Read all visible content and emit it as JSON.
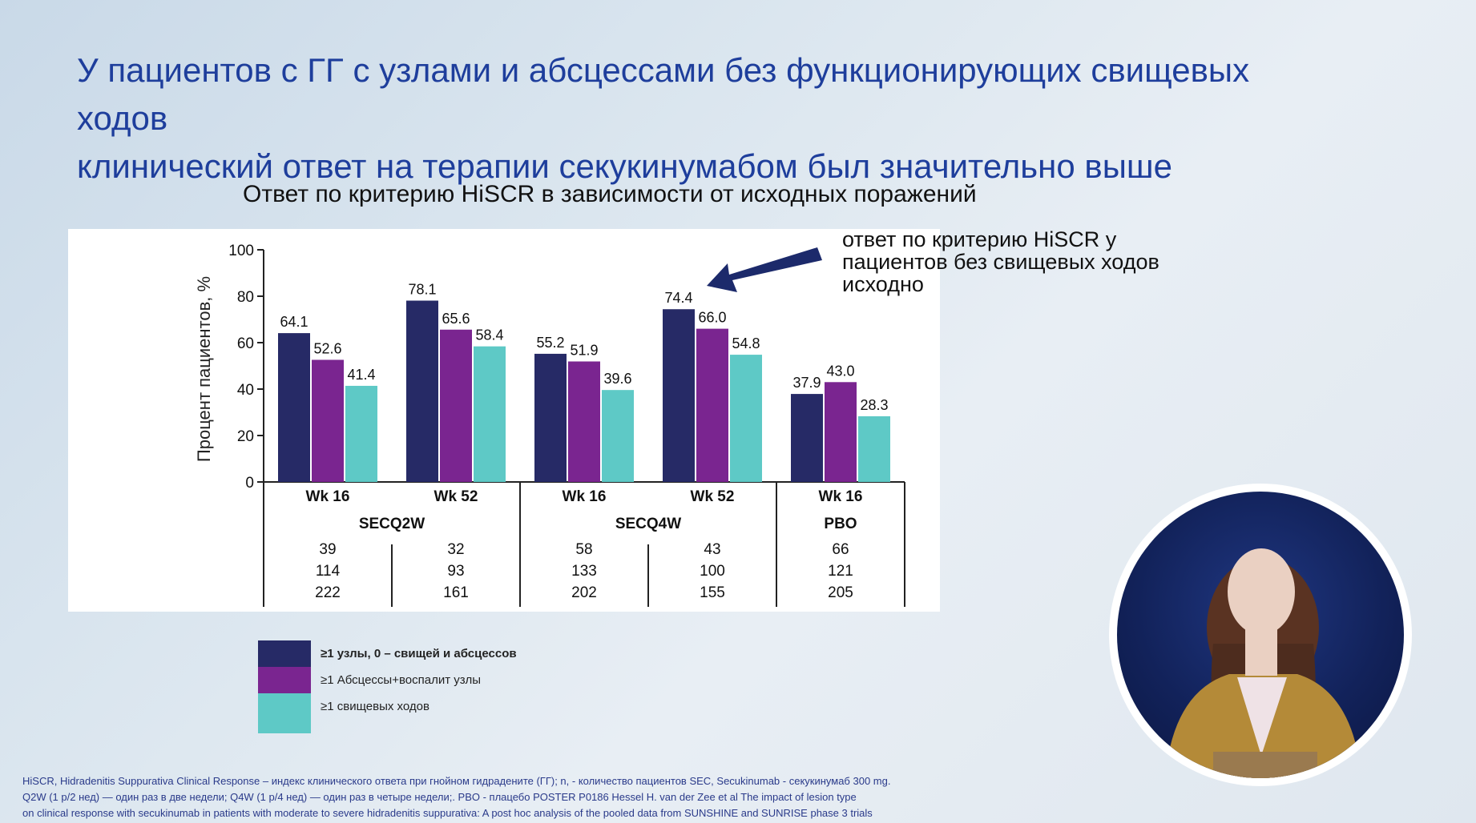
{
  "slide": {
    "title_line1": "У пациентов с ГГ с узлами и абсцессами без функционирующих свищевых ходов",
    "title_line2": "клинический ответ на терапии секукинумабом был значительно выше",
    "chart_heading": "Ответ по критерию HiSCR в зависимости от исходных поражений",
    "annotation": "ответ по критерию HiSCR у пациентов без свищевых ходов исходно",
    "footnote_line1": "HiSCR, Hidradenitis Suppurativa Clinical Response – индекс клинического ответа при гнойном гидрадените (ГГ); n, - количество пациентов SEC, Secukinumab - секукинумаб 300 mg.",
    "footnote_line2": "Q2W (1 р/2 нед) — один раз в две недели; Q4W (1 р/4 нед) — один раз в четыре недели;. PBO - плацебо POSTER P0186 Hessel H. van der Zee et al The impact of lesion type",
    "footnote_line3": "on clinical response with secukinumab in patients with moderate to severe hidradenitis suppurativa: A post hoc analysis of the pooled data from SUNSHINE and SUNRISE phase 3 trials"
  },
  "colors": {
    "series1": "#262a66",
    "series2": "#7a2590",
    "series3": "#5ec9c6",
    "title": "#1e3e9c",
    "arrow": "#1c2a6b"
  },
  "chart_data": {
    "type": "bar",
    "ylabel": "Процент пациентов, %",
    "ylim": [
      0,
      100
    ],
    "yticks": [
      0,
      20,
      40,
      60,
      80,
      100
    ],
    "categories": [
      "Wk 16",
      "Wk 52",
      "Wk 16",
      "Wk 52",
      "Wk 16"
    ],
    "groups": [
      {
        "label": "SECQ2W",
        "categories": [
          0,
          1
        ]
      },
      {
        "label": "SECQ4W",
        "categories": [
          2,
          3
        ]
      },
      {
        "label": "PBO",
        "categories": [
          4
        ]
      }
    ],
    "series": [
      {
        "name": "≥1 узлы, 0 – свищей и абсцессов",
        "values": [
          64.1,
          78.1,
          55.2,
          74.4,
          37.9
        ],
        "labels": [
          "64.1",
          "78.1",
          "55.2",
          "74.4",
          "37.9"
        ],
        "n": [
          "39",
          "32",
          "58",
          "43",
          "66"
        ]
      },
      {
        "name": "≥1 Абсцессы+воспалит узлы",
        "values": [
          52.6,
          65.6,
          51.9,
          66.0,
          43.0
        ],
        "labels": [
          "52.6",
          "65.6",
          "51.9",
          "66.0",
          "43.0"
        ],
        "n": [
          "114",
          "93",
          "133",
          "100",
          "121"
        ]
      },
      {
        "name": "≥1 свищевых ходов",
        "values": [
          41.4,
          58.4,
          39.6,
          54.8,
          28.3
        ],
        "labels": [
          "41.4",
          "58.4",
          "39.6",
          "54.8",
          "28.3"
        ],
        "n": [
          "222",
          "161",
          "202",
          "155",
          "205"
        ]
      }
    ]
  }
}
